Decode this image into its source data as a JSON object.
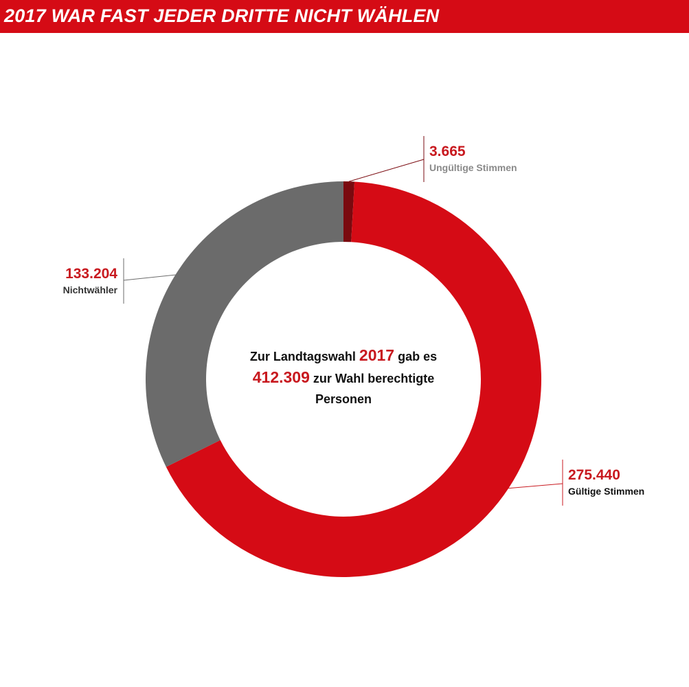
{
  "header": {
    "title": "2017 WAR FAST JEDER DRITTE NICHT WÄHLEN"
  },
  "center": {
    "line1_prefix": "Zur Landtagswahl",
    "year": "2017",
    "line1_suffix": "gab es",
    "total": "412.309",
    "line2_suffix": "zur Wahl berechtigte",
    "line3": "Personen"
  },
  "colors": {
    "header": "#d50b15",
    "valid": "#d50b15",
    "nonvoters": "#6b6b6b",
    "invalid": "#7a0a0f",
    "value_text": "#c8191f"
  },
  "chart_data": {
    "type": "donut",
    "total": 412309,
    "segments": [
      {
        "key": "invalid",
        "value": 3665,
        "value_label": "3.665",
        "label": "Ungültige Stimmen",
        "color": "#7a0a0f"
      },
      {
        "key": "valid",
        "value": 275440,
        "value_label": "275.440",
        "label": "Gültige Stimmen",
        "color": "#d50b15"
      },
      {
        "key": "nonvoters",
        "value": 133204,
        "value_label": "133.204",
        "label": "Nichtwähler",
        "color": "#6b6b6b"
      }
    ]
  }
}
